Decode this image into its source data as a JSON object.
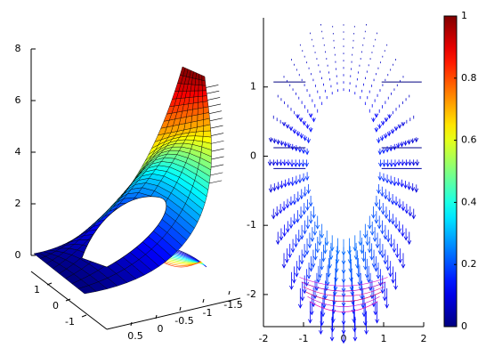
{
  "chart_data": [
    {
      "type": "surface3d",
      "zticks": [
        0,
        2,
        4,
        6,
        8
      ],
      "zlim": [
        0,
        8
      ],
      "yticks": [
        1,
        0,
        -1
      ],
      "xticks": [
        0.5,
        0,
        -0.5,
        -1,
        -1.5
      ]
    },
    {
      "type": "quiver",
      "xlim": [
        -2,
        2
      ],
      "ylim": [
        -2.4,
        2
      ],
      "xticks": [
        -2,
        -1,
        0,
        1,
        2
      ],
      "yticks": [
        -2,
        -1,
        0,
        1
      ]
    },
    {
      "type": "colorbar",
      "ylim": [
        0,
        1
      ],
      "yticks": [
        0,
        0.2,
        0.4,
        0.6,
        0.8,
        1
      ]
    }
  ]
}
